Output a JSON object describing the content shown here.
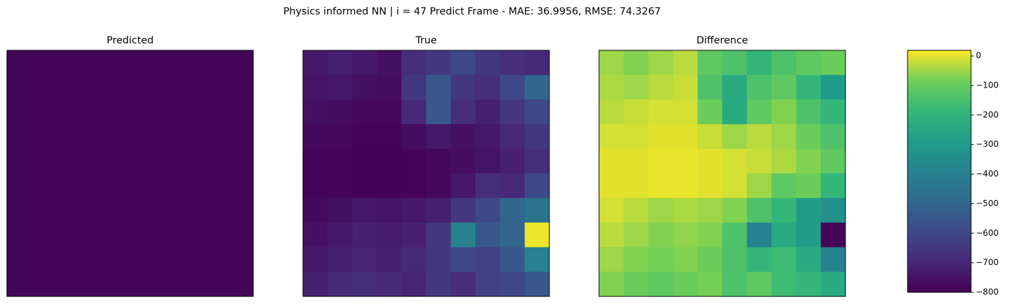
{
  "chart_data": {
    "type": "heatmap",
    "title": "Physics informed NN | i = 47 Predict Frame - MAE: 36.9956, RMSE: 74.3267",
    "panels": [
      {
        "title": "Predicted",
        "clim": [
          0,
          810
        ],
        "values": [
          [
            10,
            10,
            10,
            10,
            10,
            10,
            10,
            10,
            10,
            10
          ],
          [
            10,
            10,
            10,
            10,
            10,
            10,
            10,
            10,
            10,
            10
          ],
          [
            10,
            10,
            10,
            10,
            10,
            10,
            10,
            10,
            10,
            10
          ],
          [
            10,
            10,
            10,
            10,
            10,
            10,
            10,
            10,
            10,
            10
          ],
          [
            10,
            10,
            10,
            10,
            10,
            10,
            10,
            10,
            10,
            10
          ],
          [
            10,
            10,
            10,
            10,
            10,
            10,
            10,
            10,
            10,
            10
          ],
          [
            10,
            10,
            10,
            10,
            10,
            10,
            10,
            10,
            10,
            10
          ],
          [
            10,
            10,
            10,
            10,
            10,
            10,
            10,
            10,
            10,
            10
          ],
          [
            10,
            10,
            10,
            10,
            10,
            10,
            10,
            10,
            10,
            10
          ],
          [
            10,
            10,
            10,
            10,
            10,
            10,
            10,
            10,
            10,
            10
          ]
        ]
      },
      {
        "title": "True",
        "clim": [
          0,
          810
        ],
        "values": [
          [
            60,
            80,
            60,
            40,
            120,
            150,
            200,
            150,
            120,
            100
          ],
          [
            50,
            60,
            40,
            30,
            150,
            250,
            150,
            120,
            200,
            300
          ],
          [
            40,
            30,
            20,
            20,
            100,
            250,
            120,
            80,
            150,
            200
          ],
          [
            20,
            20,
            10,
            10,
            30,
            60,
            40,
            60,
            100,
            150
          ],
          [
            10,
            10,
            5,
            5,
            10,
            20,
            30,
            50,
            80,
            120
          ],
          [
            10,
            10,
            5,
            5,
            10,
            20,
            60,
            120,
            100,
            200
          ],
          [
            20,
            40,
            60,
            50,
            60,
            80,
            150,
            200,
            300,
            350
          ],
          [
            40,
            60,
            80,
            70,
            80,
            150,
            400,
            250,
            300,
            800
          ],
          [
            60,
            80,
            90,
            80,
            100,
            150,
            200,
            180,
            250,
            400
          ],
          [
            80,
            100,
            120,
            100,
            90,
            150,
            120,
            180,
            200,
            250
          ]
        ]
      },
      {
        "title": "Difference",
        "clim": [
          -800,
          19
        ],
        "values": [
          [
            -50,
            -70,
            -50,
            -30,
            -110,
            -140,
            -190,
            -140,
            -110,
            -90
          ],
          [
            -40,
            -50,
            -30,
            -20,
            -140,
            -240,
            -140,
            -110,
            -190,
            -290
          ],
          [
            -30,
            -20,
            -10,
            -10,
            -90,
            -240,
            -110,
            -70,
            -140,
            -190
          ],
          [
            -10,
            -10,
            0,
            0,
            -20,
            -50,
            -30,
            -50,
            -90,
            -140
          ],
          [
            0,
            0,
            5,
            5,
            0,
            -10,
            -20,
            -40,
            -70,
            -110
          ],
          [
            0,
            0,
            5,
            5,
            0,
            -10,
            -50,
            -110,
            -90,
            -190
          ],
          [
            -10,
            -30,
            -50,
            -40,
            -50,
            -70,
            -140,
            -190,
            -290,
            -340
          ],
          [
            -30,
            -50,
            -70,
            -60,
            -70,
            -140,
            -390,
            -240,
            -290,
            -790
          ],
          [
            -50,
            -70,
            -80,
            -70,
            -90,
            -140,
            -190,
            -170,
            -240,
            -390
          ],
          [
            -70,
            -90,
            -110,
            -90,
            -80,
            -140,
            -110,
            -170,
            -190,
            -240
          ]
        ]
      }
    ],
    "colorbar": {
      "lim": [
        -800,
        19
      ],
      "ticks": [
        0,
        {
          "value": -100,
          "label": "−100"
        },
        {
          "value": -200,
          "label": "−200"
        },
        {
          "value": -300,
          "label": "−300"
        },
        {
          "value": -400,
          "label": "−400"
        },
        {
          "value": -500,
          "label": "−500"
        },
        {
          "value": -600,
          "label": "−600"
        },
        {
          "value": -700,
          "label": "−700"
        },
        {
          "value": -800,
          "label": "−800"
        }
      ]
    }
  }
}
